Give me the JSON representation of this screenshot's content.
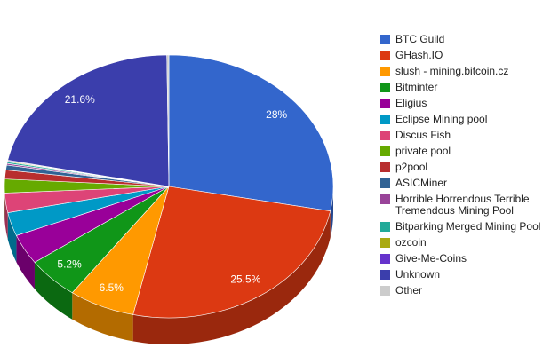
{
  "chart_data": {
    "type": "pie3d",
    "categories": [
      "BTC Guild",
      "GHash.IO",
      "slush - mining.bitcoin.cz",
      "Bitminter",
      "Eligius",
      "Eclipse Mining pool",
      "Discus Fish",
      "private pool",
      "p2pool",
      "ASICMiner",
      "Horrible Horrendous Terrible Tremendous Mining Pool",
      "Bitparking Merged Mining Pool",
      "ozcoin",
      "Give-Me-Coins",
      "Unknown",
      "Other"
    ],
    "values": [
      28,
      25.5,
      6.5,
      5.2,
      3.7,
      2.9,
      2.4,
      1.7,
      1.1,
      0.6,
      0.2,
      0.2,
      0.1,
      0.1,
      21.6,
      0.2
    ],
    "value_labels": [
      "28%",
      "25.5%",
      "6.5%",
      "5.2%",
      null,
      null,
      null,
      null,
      null,
      null,
      null,
      null,
      null,
      null,
      "21.6%",
      null
    ],
    "colors": [
      "#3366cc",
      "#dc3912",
      "#ff9900",
      "#109618",
      "#990099",
      "#0099c6",
      "#dd4477",
      "#66aa00",
      "#b82e2e",
      "#316395",
      "#994499",
      "#22aa99",
      "#aaaa11",
      "#6633cc",
      "#3b3eac",
      "#cccccc"
    ],
    "legend": "right"
  }
}
